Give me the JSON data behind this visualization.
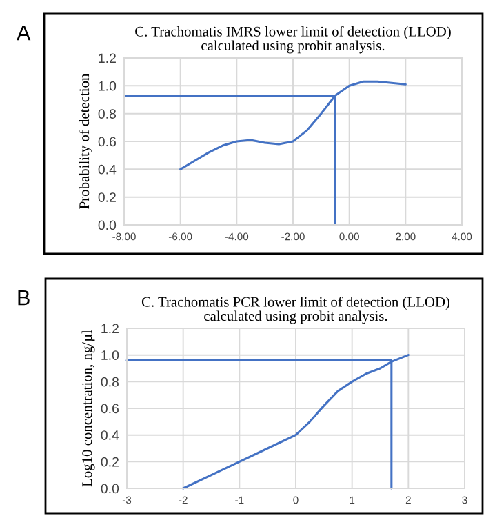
{
  "chart_data": [
    {
      "type": "line",
      "title": "C. Trachomatis IMRS lower limit of detection (LLOD)\ncalculated using probit analysis.",
      "ylabel": "Probability of detection",
      "annotations": [
        "A"
      ],
      "series": [
        {
          "color": "#4472c4",
          "x": [
            -6,
            -5.5,
            -5,
            -4.5,
            -4,
            -3.5,
            -3,
            -2.5,
            -2,
            -1.5,
            -1,
            -0.5,
            0,
            0.5,
            1,
            1.5,
            2
          ],
          "values": [
            0.4,
            0.46,
            0.52,
            0.57,
            0.6,
            0.61,
            0.59,
            0.58,
            0.6,
            0.68,
            0.8,
            0.93,
            1.0,
            1.03,
            1.03,
            1.02,
            1.01
          ]
        },
        {
          "color": "#4472c4",
          "x": [
            -8,
            -0.5,
            -0.5
          ],
          "values": [
            0.93,
            0.93,
            0.0
          ]
        }
      ],
      "xlim": [
        -8,
        4
      ],
      "xticks": [
        {
          "value": -8,
          "label": "-8.00"
        },
        {
          "value": -6,
          "label": "-6.00"
        },
        {
          "value": -4,
          "label": "-4.00"
        },
        {
          "value": -2,
          "label": "-2.00"
        },
        {
          "value": 0,
          "label": "0.00"
        },
        {
          "value": 2,
          "label": "2.00"
        },
        {
          "value": 4,
          "label": "4.00"
        }
      ],
      "ylim": [
        0,
        1.2
      ],
      "yticks": [
        {
          "value": 0,
          "label": "0.0"
        },
        {
          "value": 0.2,
          "label": "0.2"
        },
        {
          "value": 0.4,
          "label": "0.4"
        },
        {
          "value": 0.6,
          "label": "0.6"
        },
        {
          "value": 0.8,
          "label": "0.8"
        },
        {
          "value": 1.0,
          "label": "1.0"
        },
        {
          "value": 1.2,
          "label": "1.2"
        }
      ],
      "grid": true,
      "legend": false
    },
    {
      "type": "line",
      "title": "C. Trachomatis PCR lower limit of detection (LLOD)\ncalculated using probit analysis.",
      "ylabel": "Log10 concentration, ng/µl",
      "annotations": [
        "B"
      ],
      "series": [
        {
          "color": "#4472c4",
          "x": [
            -2,
            -1.5,
            -1,
            -0.5,
            0,
            0.25,
            0.5,
            0.75,
            1,
            1.25,
            1.5,
            1.7,
            2
          ],
          "values": [
            0.0,
            0.1,
            0.2,
            0.3,
            0.4,
            0.5,
            0.62,
            0.73,
            0.8,
            0.86,
            0.9,
            0.95,
            1.0
          ]
        },
        {
          "color": "#4472c4",
          "x": [
            -3,
            1.7,
            1.7
          ],
          "values": [
            0.96,
            0.96,
            0.0
          ]
        }
      ],
      "xlim": [
        -3,
        3
      ],
      "xticks": [
        -3,
        -2,
        -1,
        0,
        1,
        2,
        3
      ],
      "ylim": [
        0,
        1.2
      ],
      "yticks": [
        {
          "value": 0,
          "label": "0.0"
        },
        {
          "value": 0.2,
          "label": "0.2"
        },
        {
          "value": 0.4,
          "label": "0.4"
        },
        {
          "value": 0.6,
          "label": "0.6"
        },
        {
          "value": 0.8,
          "label": "0.8"
        },
        {
          "value": 1.0,
          "label": "1.0"
        },
        {
          "value": 1.2,
          "label": "1.2"
        }
      ],
      "grid": true,
      "legend": false
    }
  ]
}
